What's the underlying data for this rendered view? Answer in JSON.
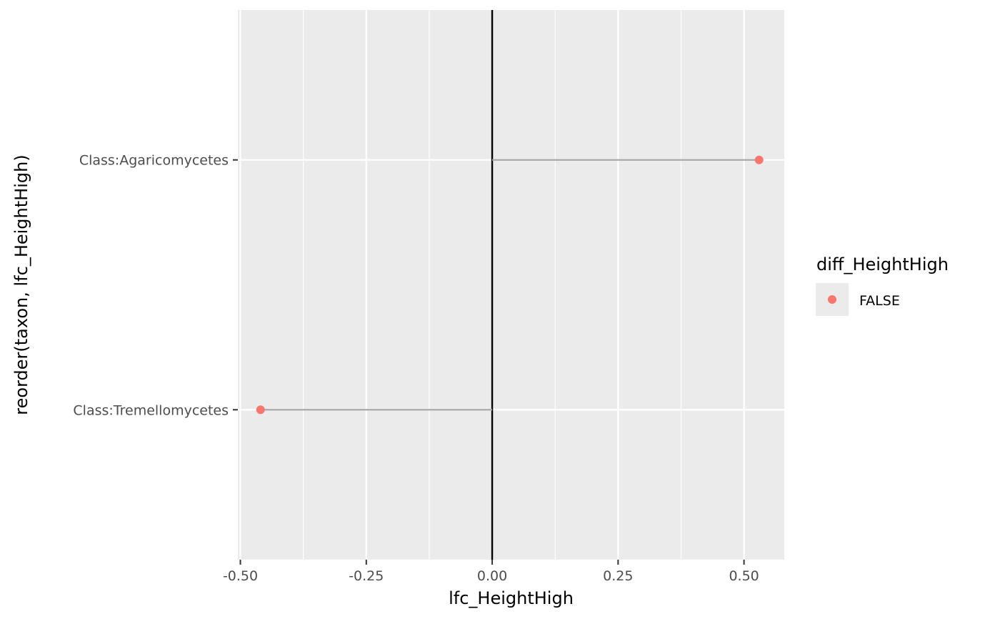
{
  "chart_data": {
    "type": "lollipop",
    "title": "",
    "xlabel": "lfc_HeightHigh",
    "ylabel": "reorder(taxon, lfc_HeightHigh)",
    "xlim": [
      -0.505,
      0.58
    ],
    "x_ticks": [
      -0.5,
      -0.25,
      0.0,
      0.25,
      0.5
    ],
    "x_tick_labels": [
      "-0.50",
      "-0.25",
      "0.00",
      "0.25",
      "0.50"
    ],
    "categories": [
      "Class:Tremellomycetes",
      "Class:Agaricomycetes"
    ],
    "values": [
      -0.46,
      0.53
    ],
    "reference_line": 0,
    "grid": true,
    "legend": {
      "title": "diff_HeightHigh",
      "placement": "right",
      "entries": [
        {
          "label": "FALSE",
          "color": "#F8766D"
        }
      ]
    },
    "colors": {
      "panel_background": "#EBEBEB",
      "grid": "#FFFFFF",
      "segment": "#A8A8A8",
      "point": "#F8766D",
      "reference_line": "#000000"
    }
  }
}
